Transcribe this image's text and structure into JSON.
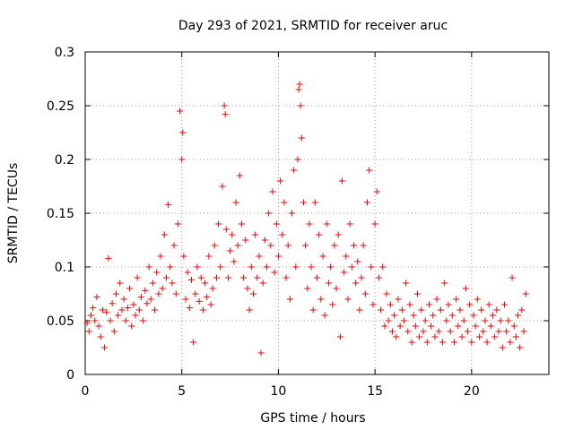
{
  "chart_data": {
    "type": "scatter",
    "title": "Day 293 of 2021, SRMTID for receiver aruc",
    "xlabel": "GPS time / hours",
    "ylabel": "SRMTID / TECUs",
    "xlim": [
      0,
      24
    ],
    "ylim": [
      0,
      0.3
    ],
    "xticks": [
      0,
      5,
      10,
      15,
      20
    ],
    "yticks": [
      0,
      0.05,
      0.1,
      0.15,
      0.2,
      0.25,
      0.3
    ],
    "xtick_labels": [
      "0",
      "5",
      "10",
      "15",
      "20"
    ],
    "ytick_labels": [
      "0",
      "0.05",
      "0.1",
      "0.15",
      "0.2",
      "0.25",
      "0.3"
    ],
    "grid": true,
    "marker": "+",
    "series": [
      {
        "name": "SRMTID",
        "color": "#ff0000",
        "points": [
          [
            0.1,
            0.048
          ],
          [
            0.2,
            0.04
          ],
          [
            0.3,
            0.055
          ],
          [
            0.4,
            0.062
          ],
          [
            0.5,
            0.05
          ],
          [
            0.6,
            0.072
          ],
          [
            0.7,
            0.045
          ],
          [
            0.8,
            0.035
          ],
          [
            0.9,
            0.06
          ],
          [
            1.0,
            0.025
          ],
          [
            1.1,
            0.058
          ],
          [
            1.2,
            0.108
          ],
          [
            1.3,
            0.05
          ],
          [
            1.4,
            0.066
          ],
          [
            1.5,
            0.04
          ],
          [
            1.6,
            0.075
          ],
          [
            1.7,
            0.055
          ],
          [
            1.8,
            0.085
          ],
          [
            1.9,
            0.06
          ],
          [
            2.0,
            0.07
          ],
          [
            2.1,
            0.05
          ],
          [
            2.2,
            0.062
          ],
          [
            2.3,
            0.08
          ],
          [
            2.4,
            0.045
          ],
          [
            2.5,
            0.065
          ],
          [
            2.6,
            0.055
          ],
          [
            2.7,
            0.09
          ],
          [
            2.8,
            0.06
          ],
          [
            2.9,
            0.072
          ],
          [
            3.0,
            0.05
          ],
          [
            3.1,
            0.078
          ],
          [
            3.2,
            0.066
          ],
          [
            3.3,
            0.1
          ],
          [
            3.4,
            0.07
          ],
          [
            3.5,
            0.085
          ],
          [
            3.6,
            0.06
          ],
          [
            3.7,
            0.095
          ],
          [
            3.8,
            0.075
          ],
          [
            3.9,
            0.11
          ],
          [
            4.0,
            0.08
          ],
          [
            4.1,
            0.13
          ],
          [
            4.2,
            0.09
          ],
          [
            4.3,
            0.158
          ],
          [
            4.4,
            0.1
          ],
          [
            4.5,
            0.085
          ],
          [
            4.6,
            0.12
          ],
          [
            4.7,
            0.075
          ],
          [
            4.8,
            0.14
          ],
          [
            4.9,
            0.245
          ],
          [
            5.0,
            0.2
          ],
          [
            5.05,
            0.225
          ],
          [
            5.1,
            0.11
          ],
          [
            5.2,
            0.07
          ],
          [
            5.3,
            0.095
          ],
          [
            5.4,
            0.062
          ],
          [
            5.5,
            0.088
          ],
          [
            5.6,
            0.03
          ],
          [
            5.7,
            0.075
          ],
          [
            5.8,
            0.1
          ],
          [
            5.9,
            0.068
          ],
          [
            6.0,
            0.09
          ],
          [
            6.1,
            0.06
          ],
          [
            6.2,
            0.085
          ],
          [
            6.3,
            0.072
          ],
          [
            6.4,
            0.11
          ],
          [
            6.5,
            0.065
          ],
          [
            6.6,
            0.08
          ],
          [
            6.7,
            0.12
          ],
          [
            6.8,
            0.09
          ],
          [
            6.9,
            0.14
          ],
          [
            7.0,
            0.1
          ],
          [
            7.1,
            0.175
          ],
          [
            7.2,
            0.25
          ],
          [
            7.25,
            0.242
          ],
          [
            7.3,
            0.135
          ],
          [
            7.4,
            0.09
          ],
          [
            7.5,
            0.115
          ],
          [
            7.6,
            0.13
          ],
          [
            7.7,
            0.105
          ],
          [
            7.8,
            0.16
          ],
          [
            7.9,
            0.12
          ],
          [
            8.0,
            0.185
          ],
          [
            8.1,
            0.14
          ],
          [
            8.2,
            0.09
          ],
          [
            8.3,
            0.125
          ],
          [
            8.4,
            0.08
          ],
          [
            8.5,
            0.06
          ],
          [
            8.6,
            0.1
          ],
          [
            8.7,
            0.075
          ],
          [
            8.8,
            0.13
          ],
          [
            8.9,
            0.09
          ],
          [
            9.0,
            0.11
          ],
          [
            9.1,
            0.02
          ],
          [
            9.2,
            0.085
          ],
          [
            9.3,
            0.125
          ],
          [
            9.4,
            0.1
          ],
          [
            9.5,
            0.15
          ],
          [
            9.6,
            0.12
          ],
          [
            9.7,
            0.17
          ],
          [
            9.8,
            0.095
          ],
          [
            9.9,
            0.14
          ],
          [
            10.0,
            0.11
          ],
          [
            10.1,
            0.18
          ],
          [
            10.2,
            0.13
          ],
          [
            10.3,
            0.16
          ],
          [
            10.4,
            0.09
          ],
          [
            10.5,
            0.12
          ],
          [
            10.6,
            0.07
          ],
          [
            10.7,
            0.15
          ],
          [
            10.8,
            0.19
          ],
          [
            10.9,
            0.1
          ],
          [
            11.0,
            0.2
          ],
          [
            11.05,
            0.265
          ],
          [
            11.1,
            0.27
          ],
          [
            11.15,
            0.25
          ],
          [
            11.2,
            0.22
          ],
          [
            11.3,
            0.16
          ],
          [
            11.4,
            0.12
          ],
          [
            11.5,
            0.08
          ],
          [
            11.6,
            0.14
          ],
          [
            11.7,
            0.1
          ],
          [
            11.8,
            0.06
          ],
          [
            11.9,
            0.16
          ],
          [
            12.0,
            0.09
          ],
          [
            12.1,
            0.13
          ],
          [
            12.2,
            0.07
          ],
          [
            12.3,
            0.11
          ],
          [
            12.4,
            0.055
          ],
          [
            12.5,
            0.14
          ],
          [
            12.6,
            0.085
          ],
          [
            12.7,
            0.1
          ],
          [
            12.8,
            0.065
          ],
          [
            12.9,
            0.12
          ],
          [
            13.0,
            0.08
          ],
          [
            13.1,
            0.13
          ],
          [
            13.2,
            0.035
          ],
          [
            13.3,
            0.18
          ],
          [
            13.4,
            0.095
          ],
          [
            13.5,
            0.11
          ],
          [
            13.6,
            0.07
          ],
          [
            13.7,
            0.14
          ],
          [
            13.8,
            0.1
          ],
          [
            13.9,
            0.12
          ],
          [
            14.0,
            0.085
          ],
          [
            14.1,
            0.105
          ],
          [
            14.2,
            0.06
          ],
          [
            14.3,
            0.09
          ],
          [
            14.4,
            0.12
          ],
          [
            14.5,
            0.075
          ],
          [
            14.6,
            0.16
          ],
          [
            14.7,
            0.19
          ],
          [
            14.8,
            0.1
          ],
          [
            14.9,
            0.065
          ],
          [
            15.0,
            0.14
          ],
          [
            15.1,
            0.17
          ],
          [
            15.2,
            0.09
          ],
          [
            15.3,
            0.06
          ],
          [
            15.4,
            0.1
          ],
          [
            15.5,
            0.045
          ],
          [
            15.6,
            0.075
          ],
          [
            15.7,
            0.05
          ],
          [
            15.8,
            0.065
          ],
          [
            15.9,
            0.04
          ],
          [
            16.0,
            0.055
          ],
          [
            16.1,
            0.035
          ],
          [
            16.2,
            0.07
          ],
          [
            16.3,
            0.045
          ],
          [
            16.4,
            0.06
          ],
          [
            16.5,
            0.05
          ],
          [
            16.6,
            0.085
          ],
          [
            16.7,
            0.04
          ],
          [
            16.8,
            0.065
          ],
          [
            16.9,
            0.03
          ],
          [
            17.0,
            0.055
          ],
          [
            17.1,
            0.045
          ],
          [
            17.2,
            0.075
          ],
          [
            17.3,
            0.035
          ],
          [
            17.4,
            0.06
          ],
          [
            17.5,
            0.04
          ],
          [
            17.6,
            0.05
          ],
          [
            17.7,
            0.03
          ],
          [
            17.8,
            0.065
          ],
          [
            17.9,
            0.045
          ],
          [
            18.0,
            0.055
          ],
          [
            18.1,
            0.035
          ],
          [
            18.2,
            0.07
          ],
          [
            18.3,
            0.04
          ],
          [
            18.4,
            0.06
          ],
          [
            18.5,
            0.03
          ],
          [
            18.6,
            0.085
          ],
          [
            18.7,
            0.05
          ],
          [
            18.8,
            0.065
          ],
          [
            18.9,
            0.04
          ],
          [
            19.0,
            0.055
          ],
          [
            19.1,
            0.03
          ],
          [
            19.2,
            0.07
          ],
          [
            19.3,
            0.045
          ],
          [
            19.4,
            0.06
          ],
          [
            19.5,
            0.035
          ],
          [
            19.6,
            0.05
          ],
          [
            19.7,
            0.08
          ],
          [
            19.8,
            0.04
          ],
          [
            19.9,
            0.065
          ],
          [
            20.0,
            0.03
          ],
          [
            20.1,
            0.055
          ],
          [
            20.2,
            0.045
          ],
          [
            20.3,
            0.07
          ],
          [
            20.4,
            0.035
          ],
          [
            20.5,
            0.06
          ],
          [
            20.6,
            0.04
          ],
          [
            20.7,
            0.05
          ],
          [
            20.8,
            0.03
          ],
          [
            20.9,
            0.065
          ],
          [
            21.0,
            0.045
          ],
          [
            21.1,
            0.055
          ],
          [
            21.2,
            0.035
          ],
          [
            21.3,
            0.06
          ],
          [
            21.4,
            0.04
          ],
          [
            21.5,
            0.05
          ],
          [
            21.6,
            0.025
          ],
          [
            21.7,
            0.065
          ],
          [
            21.8,
            0.04
          ],
          [
            21.9,
            0.05
          ],
          [
            22.0,
            0.03
          ],
          [
            22.1,
            0.09
          ],
          [
            22.2,
            0.045
          ],
          [
            22.3,
            0.035
          ],
          [
            22.4,
            0.055
          ],
          [
            22.5,
            0.025
          ],
          [
            22.6,
            0.06
          ],
          [
            22.7,
            0.04
          ],
          [
            22.8,
            0.075
          ]
        ]
      }
    ]
  }
}
